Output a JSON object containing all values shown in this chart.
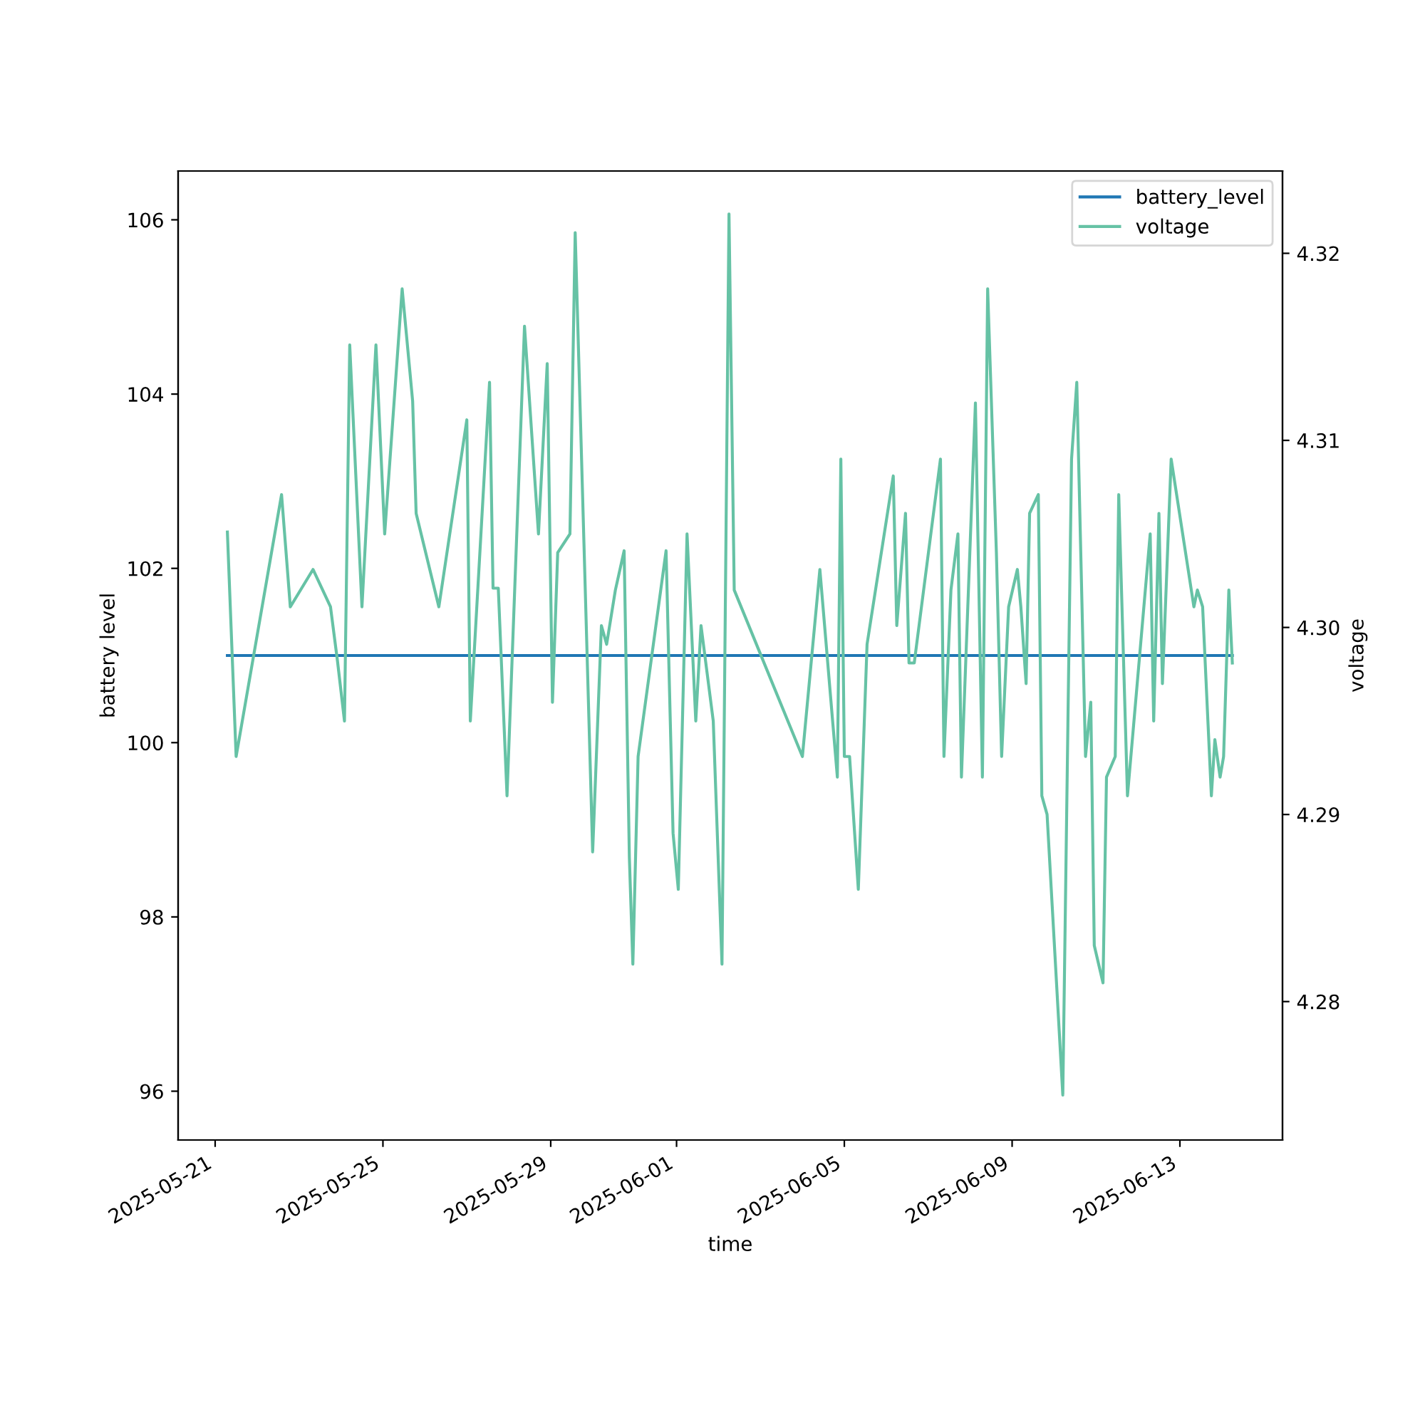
{
  "chart_data": {
    "type": "line",
    "xlabel": "time",
    "ylabel": "battery level",
    "y2label": "voltage",
    "xlim": [
      "2025-05-20T02:49",
      "2025-06-15T10:42"
    ],
    "xticks": [
      "2025-05-21",
      "2025-05-25",
      "2025-05-29",
      "2025-06-01",
      "2025-06-05",
      "2025-06-09",
      "2025-06-13"
    ],
    "ylim": [
      95.44,
      106.56
    ],
    "yticks": [
      96,
      98,
      100,
      102,
      104,
      106
    ],
    "y2lim": [
      4.2726,
      4.3244
    ],
    "y2ticks": [
      4.28,
      4.29,
      {
        "value": 4.3,
        "label": "4.30"
      },
      4.31,
      4.32
    ],
    "legend": "top right",
    "grid": false,
    "series": [
      {
        "name": "battery_level",
        "color": "#1f77b4",
        "x": [
          "2025-05-21T07:00",
          "2025-06-14T06:00"
        ],
        "values": [
          101,
          101
        ]
      },
      {
        "name": "voltage",
        "color": "#66c2a5",
        "axis": "y2",
        "x": [
          "2025-05-21T07:00",
          "2025-05-21T12:00",
          "2025-05-22T14:00",
          "2025-05-22T19:00",
          "2025-05-23T08:00",
          "2025-05-23T18:00",
          "2025-05-23T22:00",
          "2025-05-24T02:00",
          "2025-05-24T05:00",
          "2025-05-24T12:00",
          "2025-05-24T20:00",
          "2025-05-25T01:00",
          "2025-05-25T11:00",
          "2025-05-25T17:00",
          "2025-05-25T19:00",
          "2025-05-26T08:00",
          "2025-05-27T00:00",
          "2025-05-27T02:00",
          "2025-05-27T13:00",
          "2025-05-27T15:00",
          "2025-05-27T18:00",
          "2025-05-27T23:00",
          "2025-05-28T09:00",
          "2025-05-28T17:00",
          "2025-05-28T22:00",
          "2025-05-29T01:00",
          "2025-05-29T04:00",
          "2025-05-29T11:00",
          "2025-05-29T14:00",
          "2025-05-30T00:00",
          "2025-05-30T05:00",
          "2025-05-30T08:00",
          "2025-05-30T13:00",
          "2025-05-30T18:00",
          "2025-05-30T21:00",
          "2025-05-30T23:00",
          "2025-05-31T02:00",
          "2025-05-31T18:00",
          "2025-05-31T22:00",
          "2025-06-01T01:00",
          "2025-06-01T06:00",
          "2025-06-01T11:00",
          "2025-06-01T14:00",
          "2025-06-01T21:00",
          "2025-06-02T02:00",
          "2025-06-02T06:00",
          "2025-06-02T09:00",
          "2025-06-04T00:00",
          "2025-06-04T10:00",
          "2025-06-04T20:00",
          "2025-06-04T22:00",
          "2025-06-05T00:00",
          "2025-06-05T03:00",
          "2025-06-05T08:00",
          "2025-06-05T13:00",
          "2025-06-06T04:00",
          "2025-06-06T06:00",
          "2025-06-06T11:00",
          "2025-06-06T13:00",
          "2025-06-06T16:00",
          "2025-06-07T07:00",
          "2025-06-07T09:00",
          "2025-06-07T13:00",
          "2025-06-07T17:00",
          "2025-06-07T19:00",
          "2025-06-08T03:00",
          "2025-06-08T07:00",
          "2025-06-08T10:00",
          "2025-06-08T15:00",
          "2025-06-08T18:00",
          "2025-06-08T22:00",
          "2025-06-09T03:00",
          "2025-06-09T05:00",
          "2025-06-09T08:00",
          "2025-06-09T10:00",
          "2025-06-09T15:00",
          "2025-06-09T17:00",
          "2025-06-09T20:00",
          "2025-06-10T05:00",
          "2025-06-10T10:00",
          "2025-06-10T13:00",
          "2025-06-10T18:00",
          "2025-06-10T21:00",
          "2025-06-10T23:00",
          "2025-06-11T04:00",
          "2025-06-11T06:00",
          "2025-06-11T11:00",
          "2025-06-11T13:00",
          "2025-06-11T18:00",
          "2025-06-12T07:00",
          "2025-06-12T09:00",
          "2025-06-12T12:00",
          "2025-06-12T14:00",
          "2025-06-12T19:00",
          "2025-06-13T08:00",
          "2025-06-13T10:00",
          "2025-06-13T13:00",
          "2025-06-13T18:00",
          "2025-06-13T20:00",
          "2025-06-13T23:00",
          "2025-06-14T01:00",
          "2025-06-14T04:00",
          "2025-06-14T06:00"
        ],
        "values": [
          4.3051,
          4.2931,
          4.3071,
          4.3011,
          4.3031,
          4.3011,
          4.2982,
          4.295,
          4.3151,
          4.3011,
          4.3151,
          4.305,
          4.3181,
          4.3121,
          4.3061,
          4.3011,
          4.3111,
          4.295,
          4.3131,
          4.3021,
          4.3021,
          4.291,
          4.3161,
          4.305,
          4.3141,
          4.296,
          4.304,
          4.305,
          4.3211,
          4.288,
          4.3001,
          4.2991,
          4.302,
          4.3041,
          4.2877,
          4.282,
          4.2931,
          4.3041,
          4.289,
          4.286,
          4.305,
          4.295,
          4.3001,
          4.295,
          4.282,
          4.3221,
          4.302,
          4.2931,
          4.3031,
          4.292,
          4.309,
          4.2931,
          4.2931,
          4.286,
          4.2991,
          4.3081,
          4.3001,
          4.3061,
          4.2981,
          4.2981,
          4.309,
          4.2931,
          4.302,
          4.305,
          4.292,
          4.312,
          4.292,
          4.3181,
          4.304,
          4.2931,
          4.3011,
          4.3031,
          4.3011,
          4.297,
          4.3061,
          4.3071,
          4.291,
          4.29,
          4.275,
          4.309,
          4.3131,
          4.2931,
          4.296,
          4.283,
          4.281,
          4.292,
          4.2931,
          4.3071,
          4.291,
          4.305,
          4.295,
          4.3061,
          4.297,
          4.309,
          4.3011,
          4.302,
          4.3011,
          4.291,
          4.294,
          4.292,
          4.2931,
          4.302,
          4.2981
        ]
      }
    ]
  }
}
